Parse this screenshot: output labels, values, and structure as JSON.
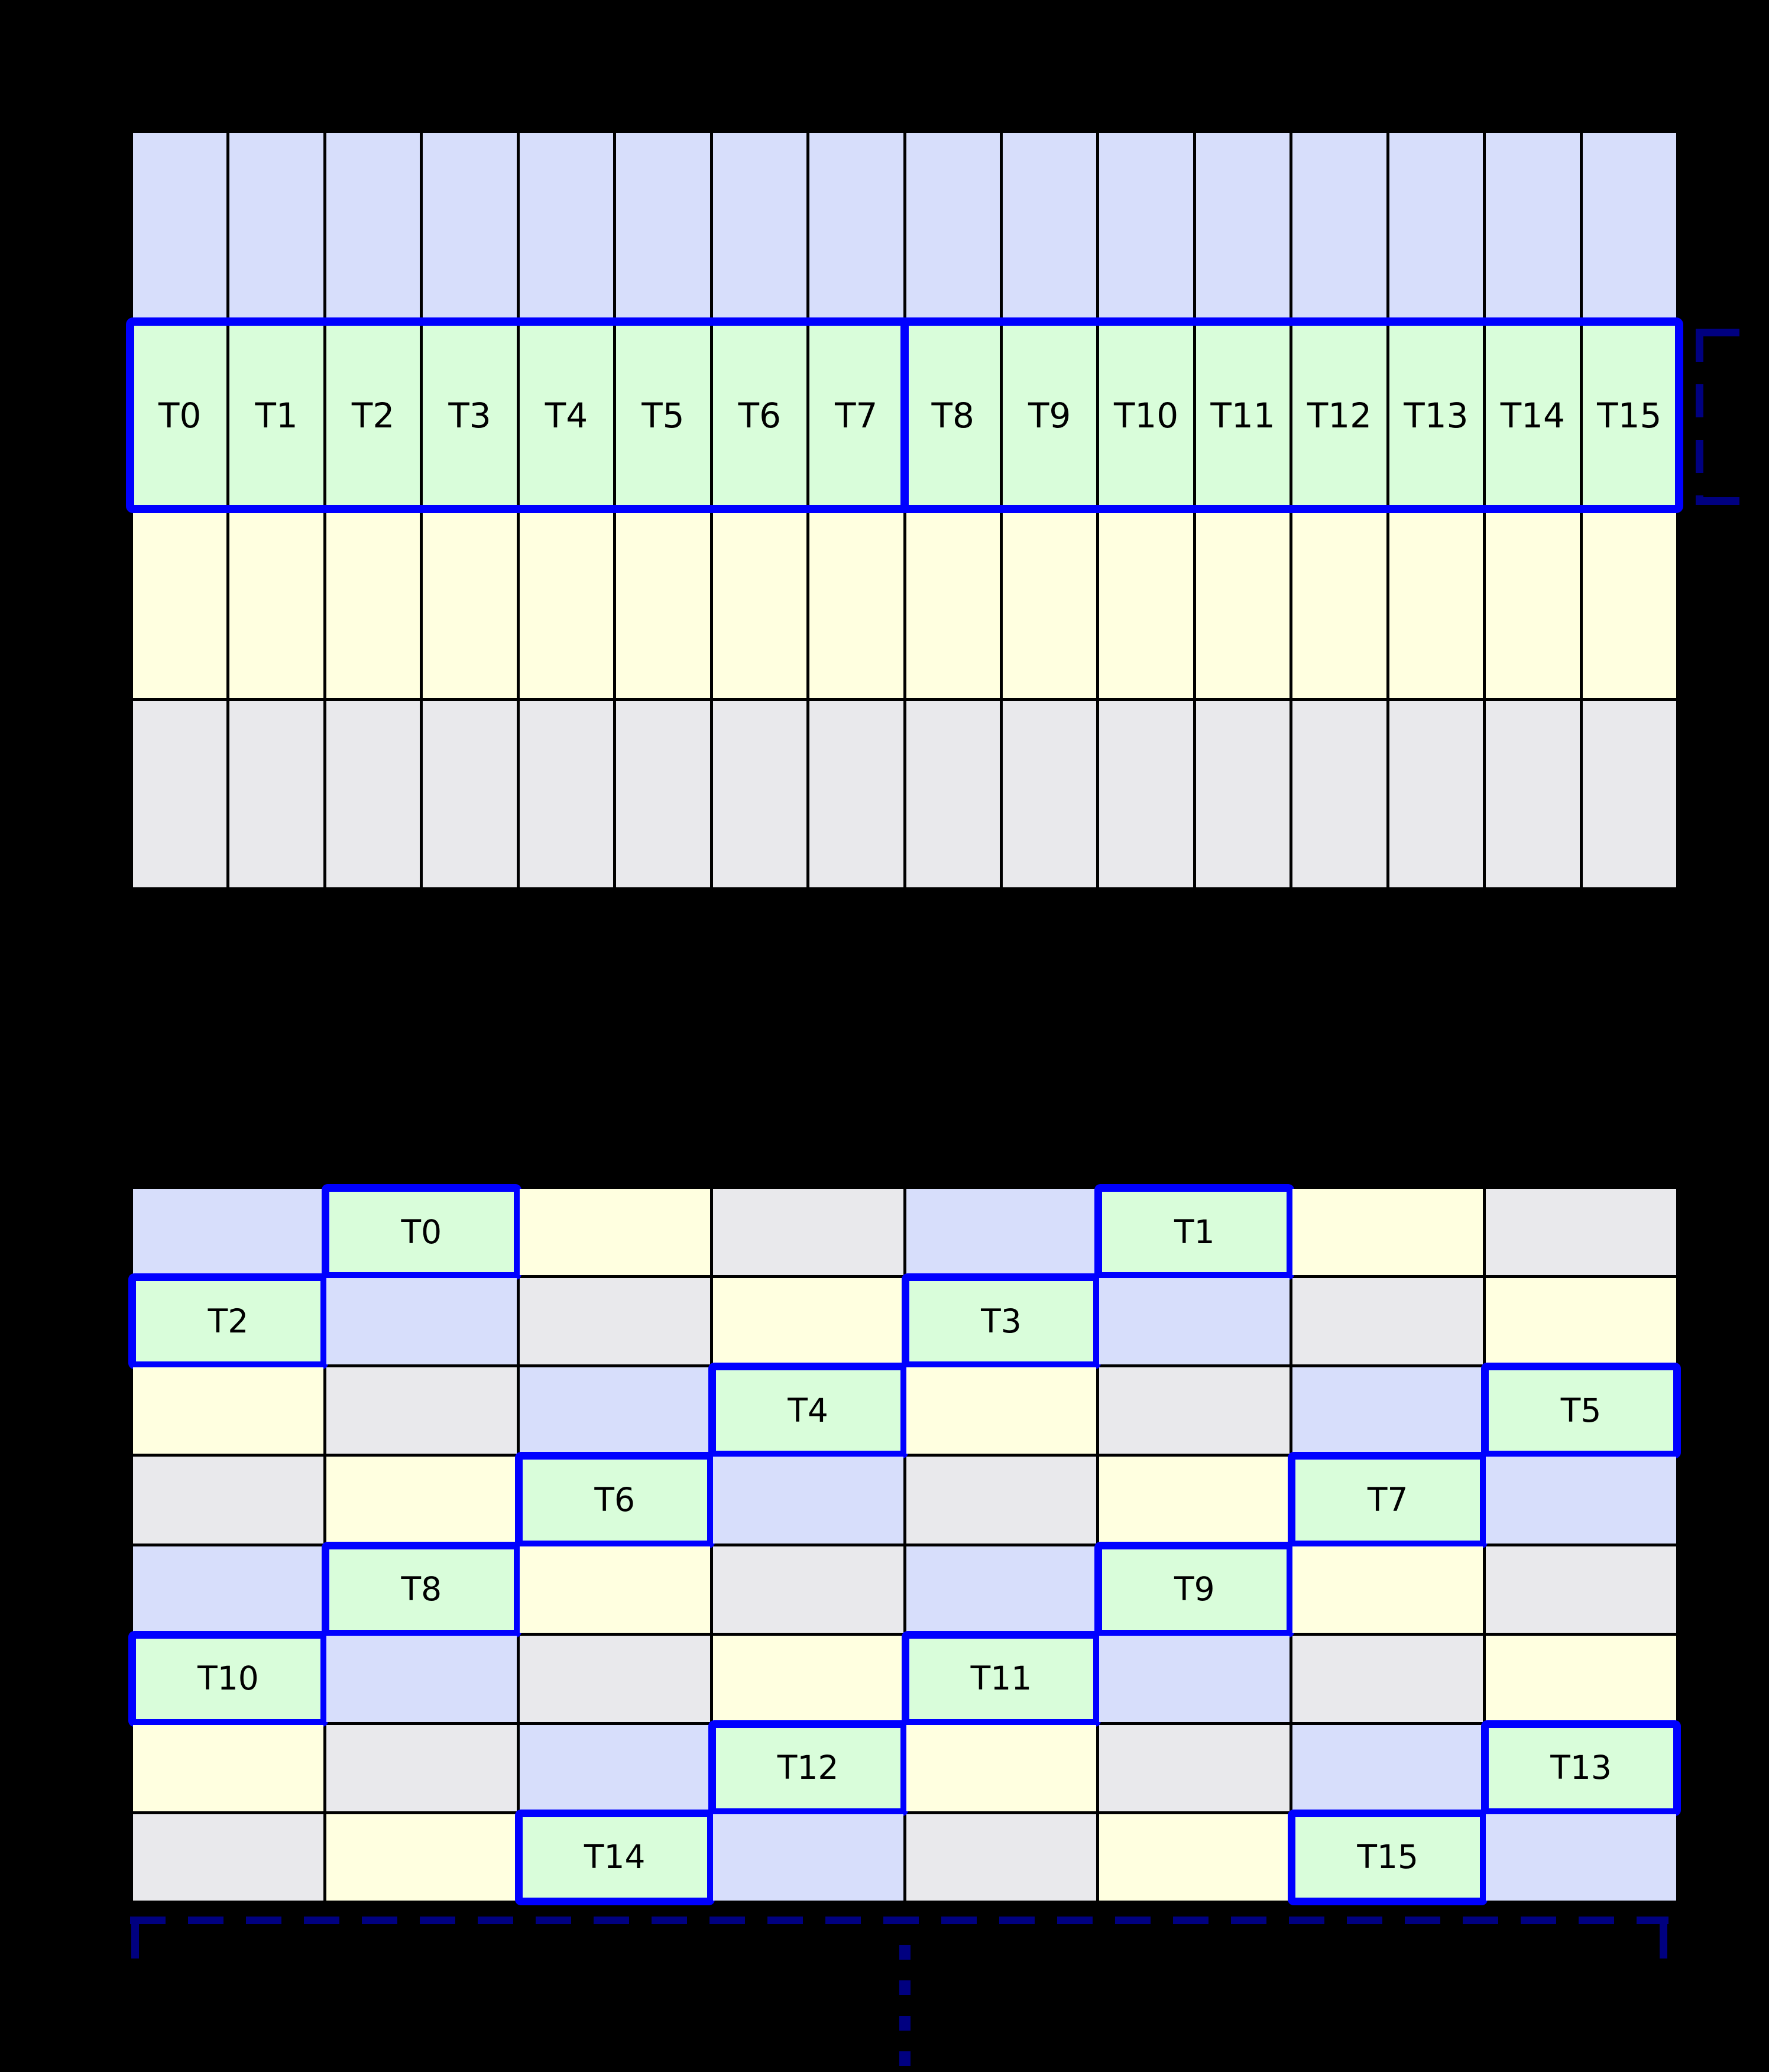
{
  "colors": {
    "background": "#000000",
    "grid_line": "#000000",
    "cell_blue": "#d7defb",
    "cell_green": "#d9fdda",
    "cell_yellow": "#ffffe0",
    "cell_gray": "#e9e9ec",
    "warp_highlight": "#0000ff",
    "bracket": "#000080",
    "label_text": "#000000"
  },
  "top_grid": {
    "columns": 16,
    "highlighted_row": 1,
    "half_warp_divider_after_column": 8,
    "rows": [
      {
        "color": "blue",
        "labels": null
      },
      {
        "color": "green",
        "labels": [
          "T0",
          "T1",
          "T2",
          "T3",
          "T4",
          "T5",
          "T6",
          "T7",
          "T8",
          "T9",
          "T10",
          "T11",
          "T12",
          "T13",
          "T14",
          "T15"
        ]
      },
      {
        "color": "yellow",
        "labels": null
      },
      {
        "color": "gray",
        "labels": null
      }
    ]
  },
  "bottom_grid": {
    "columns": 8,
    "rows": [
      [
        {
          "color": "blue"
        },
        {
          "color": "green",
          "label": "T0"
        },
        {
          "color": "yellow"
        },
        {
          "color": "gray"
        },
        {
          "color": "blue"
        },
        {
          "color": "green",
          "label": "T1"
        },
        {
          "color": "yellow"
        },
        {
          "color": "gray"
        }
      ],
      [
        {
          "color": "green",
          "label": "T2"
        },
        {
          "color": "blue"
        },
        {
          "color": "gray"
        },
        {
          "color": "yellow"
        },
        {
          "color": "green",
          "label": "T3"
        },
        {
          "color": "blue"
        },
        {
          "color": "gray"
        },
        {
          "color": "yellow"
        }
      ],
      [
        {
          "color": "yellow"
        },
        {
          "color": "gray"
        },
        {
          "color": "blue"
        },
        {
          "color": "green",
          "label": "T4"
        },
        {
          "color": "yellow"
        },
        {
          "color": "gray"
        },
        {
          "color": "blue"
        },
        {
          "color": "green",
          "label": "T5"
        }
      ],
      [
        {
          "color": "gray"
        },
        {
          "color": "yellow"
        },
        {
          "color": "green",
          "label": "T6"
        },
        {
          "color": "blue"
        },
        {
          "color": "gray"
        },
        {
          "color": "yellow"
        },
        {
          "color": "green",
          "label": "T7"
        },
        {
          "color": "blue"
        }
      ],
      [
        {
          "color": "blue"
        },
        {
          "color": "green",
          "label": "T8"
        },
        {
          "color": "yellow"
        },
        {
          "color": "gray"
        },
        {
          "color": "blue"
        },
        {
          "color": "green",
          "label": "T9"
        },
        {
          "color": "yellow"
        },
        {
          "color": "gray"
        }
      ],
      [
        {
          "color": "green",
          "label": "T10"
        },
        {
          "color": "blue"
        },
        {
          "color": "gray"
        },
        {
          "color": "yellow"
        },
        {
          "color": "green",
          "label": "T11"
        },
        {
          "color": "blue"
        },
        {
          "color": "gray"
        },
        {
          "color": "yellow"
        }
      ],
      [
        {
          "color": "yellow"
        },
        {
          "color": "gray"
        },
        {
          "color": "blue"
        },
        {
          "color": "green",
          "label": "T12"
        },
        {
          "color": "yellow"
        },
        {
          "color": "gray"
        },
        {
          "color": "blue"
        },
        {
          "color": "green",
          "label": "T13"
        }
      ],
      [
        {
          "color": "gray"
        },
        {
          "color": "yellow"
        },
        {
          "color": "green",
          "label": "T14"
        },
        {
          "color": "blue"
        },
        {
          "color": "gray"
        },
        {
          "color": "yellow"
        },
        {
          "color": "green",
          "label": "T15"
        },
        {
          "color": "blue"
        }
      ]
    ]
  },
  "annotations": {
    "warp_bracket": {
      "side": "right",
      "style": "dashed",
      "color": "#000080"
    },
    "width_bracket": {
      "side": "bottom",
      "style": "dashed",
      "color": "#000080"
    },
    "continuation_dots": {
      "count": 4,
      "color": "#000080"
    }
  }
}
